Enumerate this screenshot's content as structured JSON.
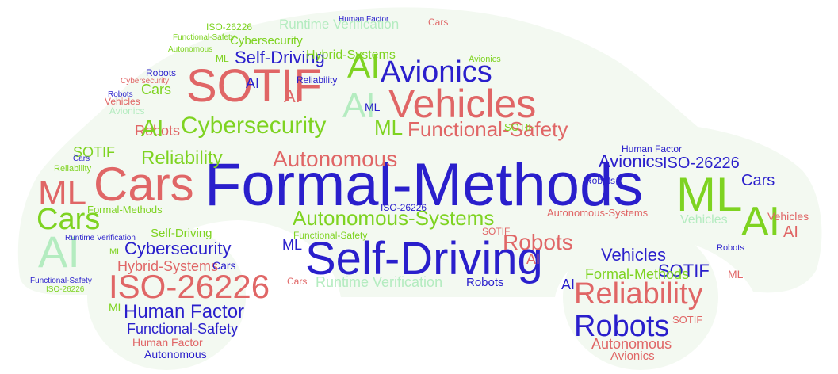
{
  "colors": {
    "red": "#e06666",
    "blue": "#2a1fcc",
    "green": "#7ed321",
    "pale_green": "#b4ecc0",
    "silhouette": "#f3f9f1"
  },
  "words": {
    "formal_methods": "Formal-Methods",
    "self_driving_big": "Self-Driving",
    "cars_big": "Cars",
    "sotif_big": "SOTIF",
    "vehicles_big": "Vehicles",
    "ml_right": "ML",
    "ai_right": "AI",
    "iso_left_wheel": "ISO-26226",
    "reliability_right_wheel": "Reliability",
    "robots_right_wheel": "Robots",
    "avionics_top": "Avionics",
    "cybersecurity_mid": "Cybersecurity",
    "functional_safety_top": "Functional-Safety",
    "autonomous_mid": "Autonomous",
    "autonomous_systems": "Autonomous-Systems",
    "ai_left_bottom": "AI",
    "ai_top_center": "AI",
    "ai_center2": "AI",
    "ml_left": "ML",
    "cars_left_lower": "Cars",
    "self_driving_top": "Self-Driving",
    "cybersecurity_top": "Cybersecurity",
    "runtime_top": "Runtime Verification",
    "human_factor_lw": "Human Factor",
    "functional_safety_lw": "Functional-Safety",
    "hybrid_lw": "Hybrid-Systems",
    "cybersecurity_lw": "Cybersecurity",
    "human_factor_lw2": "Human Factor",
    "autonomous_lw": "Autonomous",
    "self_driving_lw": "Self-Driving",
    "sotif_rw": "SOTIF",
    "vehicles_rw": "Vehicles",
    "formal_methods_rw": "Formal-Methods",
    "autonomous_rw": "Autonomous",
    "avionics_rw": "Avionics",
    "iso_right": "ISO-26226",
    "avionics_right": "Avionics",
    "cars_right": "Cars",
    "robots_center": "Robots",
    "reliability_left": "Reliability",
    "sotif_left": "SOTIF",
    "functional_safety_mid": "Functional-Safety",
    "hybrid_top": "Hybrid-Systems",
    "ml_center": "ML",
    "runtime_center": "Runtime Verification",
    "robots_upper": "Robots",
    "cars_upper": "Cars",
    "vehicles_right_mid": "Vehicles",
    "autonomous_systems_right": "Autonomous-Systems",
    "human_factor_right": "Human Factor",
    "robots_lower": "Robots",
    "formal_methods_left": "Formal-Methods",
    "iso_center": "ISO-26226",
    "ml_lower_center": "ML",
    "cars_lw": "Cars",
    "ml_lw": "ML",
    "ai_rw": "AI",
    "sotif_small_right": "SOTIF",
    "robots_small_right": "Robots",
    "ml_top": "ML",
    "functional_safety_topleft": "Functional-Safety",
    "autonomous_topleft": "Autonomous",
    "reliability_top": "Reliability",
    "avionics_small": "Avionics",
    "robots_small": "Robots",
    "vehicles_small_left": "Vehicles",
    "ml_small_mid": "ML",
    "ai_small_mid": "AI",
    "ai_small_mid2": "AI",
    "robots_topleft": "Robots",
    "cybersecurity_small": "Cybersecurity",
    "cars_small_top": "Cars",
    "human_factor_small": "Human Factor",
    "iso_small_top": "ISO-26226",
    "avionics_small2": "Avionics",
    "sotif_small_mid": "SOTIF",
    "ai_left_mid": "AI",
    "cars_small_left": "Cars",
    "reliability_small_left": "Reliability",
    "functional_safety_bottom_left": "Functional-Safety",
    "iso_bottom_left": "ISO-26226",
    "runtime_lw_lower": "Runtime Verification",
    "ml_lower_left": "ML",
    "ai_lower_right": "AI",
    "cars_lower_mid": "Cars",
    "sotif_lower_mid": "SOTIF",
    "vehicles_lower_right": "Vehicles",
    "robots_right_edge": "Robots",
    "ai_right_edge": "AI",
    "ml_right_edge": "ML"
  }
}
